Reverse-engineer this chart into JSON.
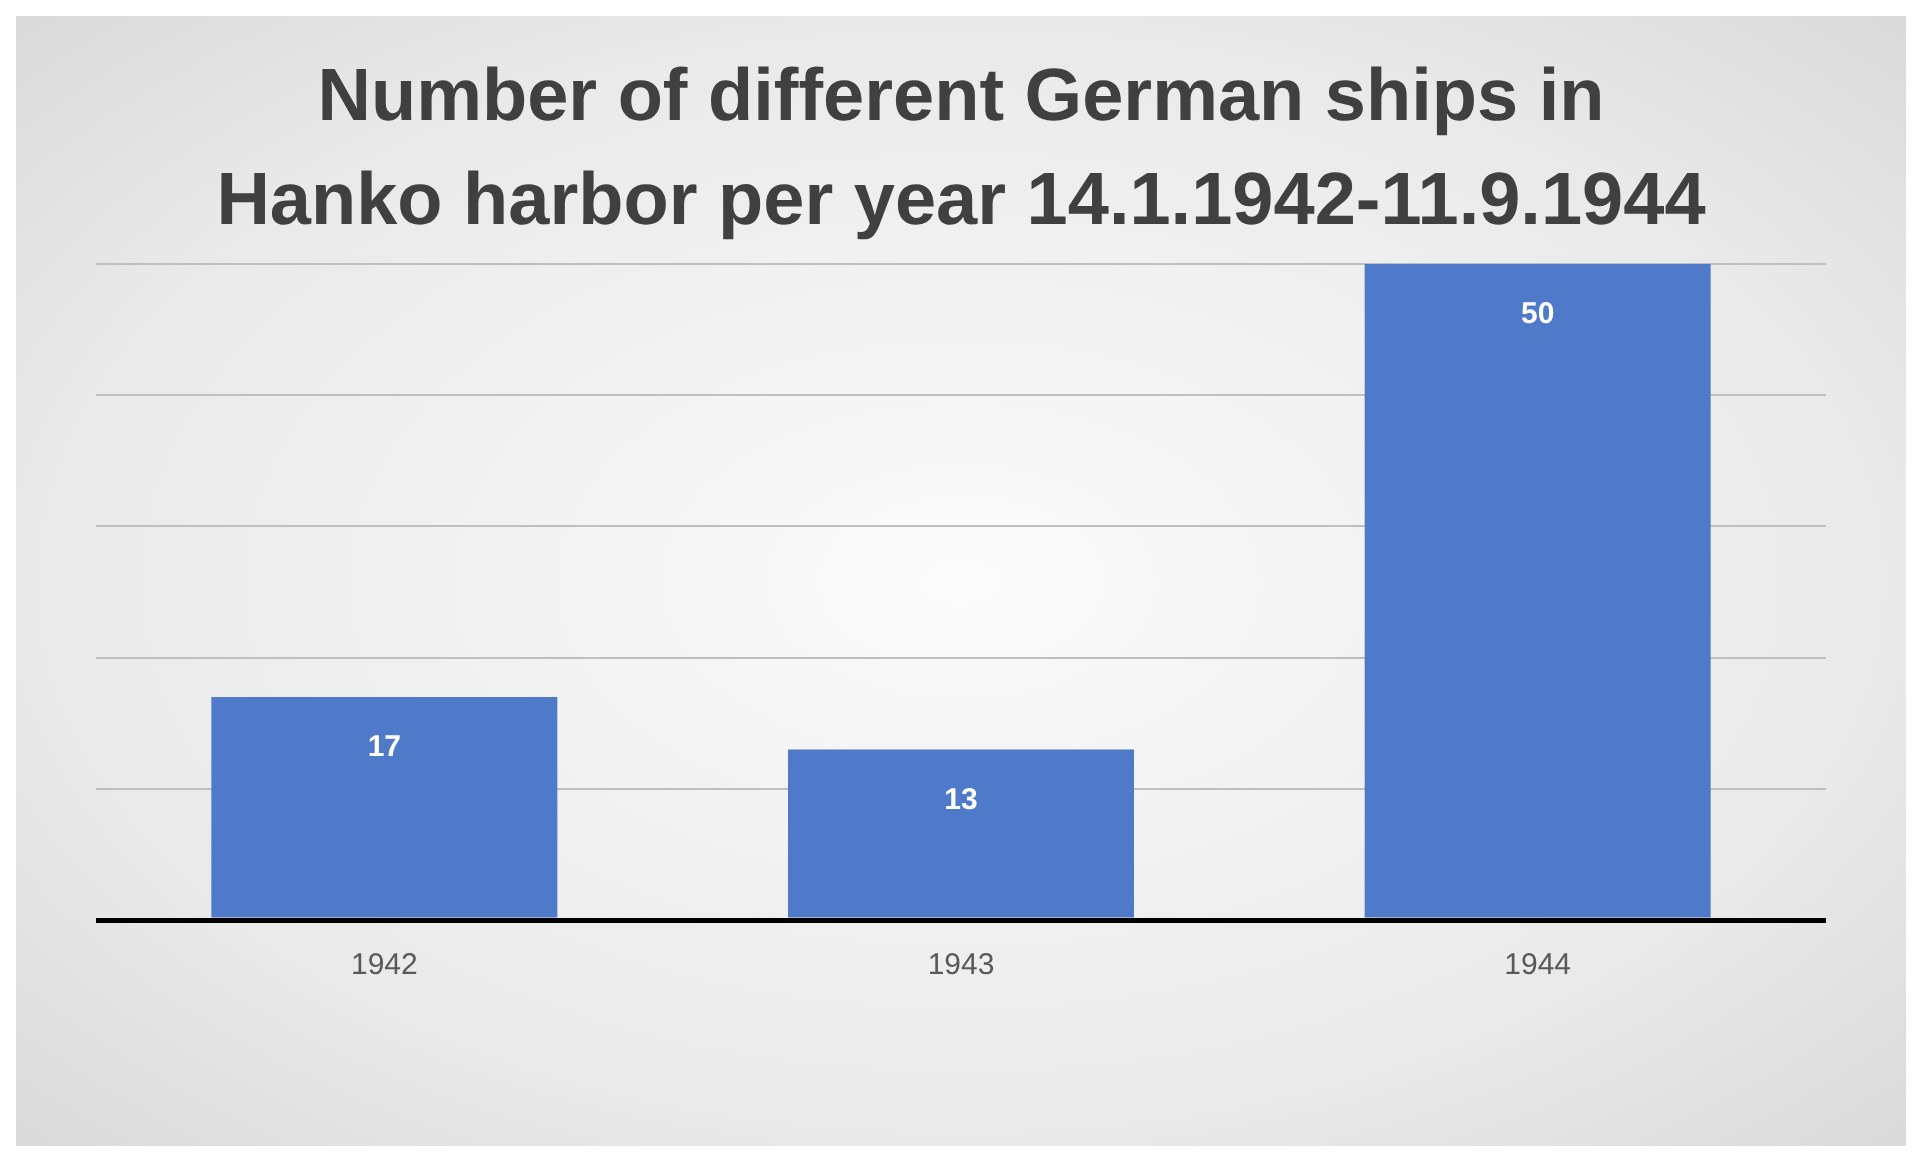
{
  "chart_data": {
    "type": "bar",
    "title": "Number of different German ships in Hanko harbor per year 14.1.1942-11.9.1944",
    "categories": [
      "1942",
      "1943",
      "1944"
    ],
    "values": [
      17,
      13,
      50
    ],
    "color": "#4f79c9",
    "ylim": [
      0,
      50
    ],
    "yticks": [
      {
        "value": 0,
        "label": null
      },
      {
        "value": 10,
        "label": null
      },
      {
        "value": 20,
        "label": null
      },
      {
        "value": 30,
        "label": null
      },
      {
        "value": 40,
        "label": null
      },
      {
        "value": 50,
        "label": null
      }
    ],
    "tick_labels": "x",
    "grid": "y",
    "data_labels": true
  }
}
